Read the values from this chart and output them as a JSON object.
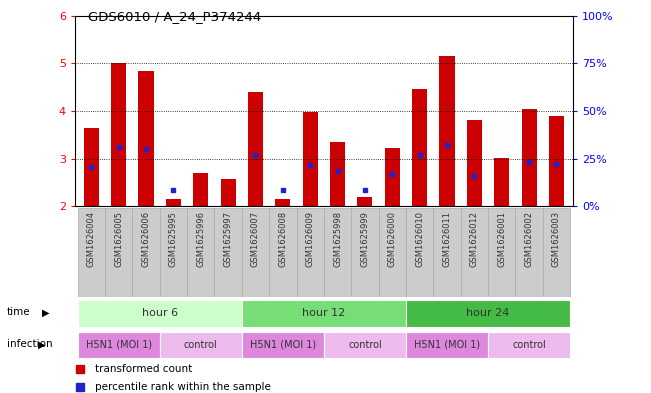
{
  "title": "GDS6010 / A_24_P374244",
  "samples": [
    "GSM1626004",
    "GSM1626005",
    "GSM1626006",
    "GSM1625995",
    "GSM1625996",
    "GSM1625997",
    "GSM1626007",
    "GSM1626008",
    "GSM1626009",
    "GSM1625998",
    "GSM1625999",
    "GSM1626000",
    "GSM1626010",
    "GSM1626011",
    "GSM1626012",
    "GSM1626001",
    "GSM1626002",
    "GSM1626003"
  ],
  "red_values": [
    3.65,
    5.0,
    4.85,
    2.15,
    2.7,
    2.58,
    4.4,
    2.15,
    3.97,
    3.36,
    2.2,
    3.22,
    4.47,
    5.15,
    3.82,
    3.02,
    4.05,
    3.9
  ],
  "blue_values": [
    2.83,
    3.25,
    3.2,
    2.35,
    null,
    null,
    3.07,
    2.35,
    2.87,
    2.75,
    2.35,
    2.67,
    3.08,
    3.28,
    2.63,
    null,
    2.93,
    2.88
  ],
  "ylim": [
    2.0,
    6.0
  ],
  "yticks_left": [
    2,
    3,
    4,
    5,
    6
  ],
  "yticks_right": [
    0,
    25,
    50,
    75,
    100
  ],
  "y2labels": [
    "0%",
    "25%",
    "50%",
    "75%",
    "100%"
  ],
  "bar_color": "#cc0000",
  "blue_color": "#2222cc",
  "bar_bottom": 2.0,
  "bar_width": 0.55,
  "group_ranges": [
    [
      0,
      5,
      "hour 6",
      "#ccffcc"
    ],
    [
      6,
      11,
      "hour 12",
      "#77dd77"
    ],
    [
      12,
      17,
      "hour 24",
      "#44bb44"
    ]
  ],
  "inf_ranges": [
    [
      0,
      2,
      "H5N1 (MOI 1)",
      "#dd88dd"
    ],
    [
      3,
      5,
      "control",
      "#eebbee"
    ],
    [
      6,
      8,
      "H5N1 (MOI 1)",
      "#dd88dd"
    ],
    [
      9,
      11,
      "control",
      "#eebbee"
    ],
    [
      12,
      14,
      "H5N1 (MOI 1)",
      "#dd88dd"
    ],
    [
      15,
      17,
      "control",
      "#eebbee"
    ]
  ],
  "legend_red": "transformed count",
  "legend_blue": "percentile rank within the sample",
  "label_bg_color": "#cccccc",
  "label_bg_edge": "#aaaaaa"
}
